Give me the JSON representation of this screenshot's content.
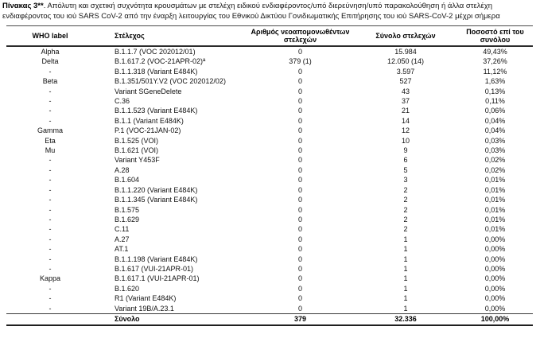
{
  "caption": {
    "label": "Πίνακας 3**",
    "rest": ". Απόλυτη και σχετική συχνότητα κρουσμάτων με στελέχη ειδικού ενδιαφέροντος/υπό διερεύνηση/υπό παρακολούθηση ή άλλα στελέχη ενδιαφέροντος του ιού SARS CoV-2 από την έναρξη λειτουργίας του Εθνικού Δικτύου Γονιδιωματικής Επιτήρησης του ιού SARS-CoV-2 μέχρι σήμερα"
  },
  "table": {
    "columns": {
      "who_label": "WHO label",
      "strain": "Στέλεχος",
      "new_isolates": "Αριθμός νεοαπομονωθέντων στελεχών",
      "total_strains": "Σύνολο στελεχών",
      "percentage": "Ποσοστό επί του συνόλου"
    },
    "column_keys": [
      "who-label",
      "strain",
      "new-isolates",
      "total-strains",
      "percentage"
    ],
    "rows": [
      [
        "Alpha",
        "B.1.1.7 (VOC 202012/01)",
        "0",
        "15.984",
        "49,43%"
      ],
      [
        "Delta",
        "B.1.617.2 (VOC-21APR-02)ª",
        "379 (1)",
        "12.050 (14)",
        "37,26%"
      ],
      [
        "-",
        "B.1.1.318 (Variant E484K)",
        "0",
        "3.597",
        "11,12%"
      ],
      [
        "Beta",
        "B.1.351/501Y.V2 (VOC 202012/02)",
        "0",
        "527",
        "1,63%"
      ],
      [
        "-",
        "Variant SGeneDelete",
        "0",
        "43",
        "0,13%"
      ],
      [
        "-",
        "C.36",
        "0",
        "37",
        "0,11%"
      ],
      [
        "-",
        "B.1.1.523 (Variant E484K)",
        "0",
        "21",
        "0,06%"
      ],
      [
        "-",
        "B.1.1 (Variant E484K)",
        "0",
        "14",
        "0,04%"
      ],
      [
        "Gamma",
        "P.1 (VOC-21JAN-02)",
        "0",
        "12",
        "0,04%"
      ],
      [
        "Eta",
        "B.1.525 (VOI)",
        "0",
        "10",
        "0,03%"
      ],
      [
        "Mu",
        "B.1.621 (VOI)",
        "0",
        "9",
        "0,03%"
      ],
      [
        "-",
        "Variant Y453F",
        "0",
        "6",
        "0,02%"
      ],
      [
        "-",
        "A.28",
        "0",
        "5",
        "0,02%"
      ],
      [
        "-",
        "B.1.604",
        "0",
        "3",
        "0,01%"
      ],
      [
        "-",
        "B.1.1.220 (Variant E484K)",
        "0",
        "2",
        "0,01%"
      ],
      [
        "-",
        "B.1.1.345 (Variant E484K)",
        "0",
        "2",
        "0,01%"
      ],
      [
        "-",
        "B.1.575",
        "0",
        "2",
        "0,01%"
      ],
      [
        "-",
        "B.1.629",
        "0",
        "2",
        "0,01%"
      ],
      [
        "-",
        "C.11",
        "0",
        "2",
        "0,01%"
      ],
      [
        "-",
        "A.27",
        "0",
        "1",
        "0,00%"
      ],
      [
        "-",
        "AT.1",
        "0",
        "1",
        "0,00%"
      ],
      [
        "-",
        "B.1.1.198 (Variant E484K)",
        "0",
        "1",
        "0,00%"
      ],
      [
        "-",
        "B.1.617 (VUI-21APR-01)",
        "0",
        "1",
        "0,00%"
      ],
      [
        "Kappa",
        "B.1.617.1 (VUI-21APR-01)",
        "0",
        "1",
        "0,00%"
      ],
      [
        "-",
        "B.1.620",
        "0",
        "1",
        "0,00%"
      ],
      [
        "-",
        "R1 (Variant E484K)",
        "0",
        "1",
        "0,00%"
      ],
      [
        "-",
        "Variant 19B/A.23.1",
        "0",
        "1",
        "0,00%"
      ]
    ],
    "total": {
      "who": "",
      "label": "Σύνολο",
      "new_isolates": "379",
      "total_strains": "32.336",
      "percentage": "100,00%"
    }
  }
}
